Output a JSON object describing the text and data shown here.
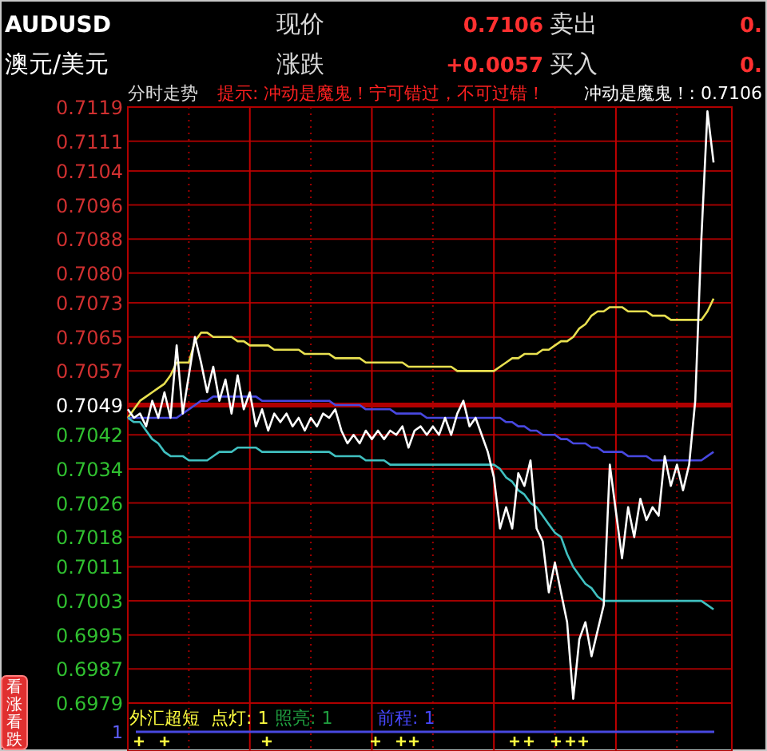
{
  "chart_data": [
    {
      "type": "line",
      "title": "AUDUSD",
      "subtitle": "澳元/美元",
      "tick_labels": "y",
      "grid": true,
      "marker": "none",
      "line_style": "solid",
      "annotations": [
        "现价",
        "0.7106",
        "卖出",
        "0.",
        "涨跌",
        "+0.0057",
        "买入",
        "0.",
        "分时走势",
        "提示: 冲动是魔鬼！宁可错过，不可过错！",
        "冲动是魔鬼！: 0.7106",
        "看涨看跌"
      ],
      "categories": [
        null,
        null,
        null,
        null,
        null,
        null,
        null,
        null,
        null,
        null,
        null,
        null,
        null,
        null,
        null,
        null,
        null,
        null,
        null,
        null,
        null,
        null,
        null,
        null,
        null,
        null,
        null,
        null,
        null,
        null,
        null,
        null,
        null,
        null,
        null,
        null,
        null,
        null,
        null,
        null,
        null,
        null,
        null,
        null,
        null,
        null,
        null,
        null,
        null,
        null,
        null,
        null,
        null,
        null,
        null,
        null,
        null,
        null,
        null,
        null,
        null,
        null,
        null,
        null,
        null,
        null,
        null,
        null,
        null,
        null,
        null,
        null,
        null,
        null,
        null,
        null,
        null,
        null,
        null,
        null,
        null,
        null,
        null,
        null,
        null,
        null,
        null,
        null,
        null,
        null,
        null,
        null,
        null,
        null,
        null,
        null,
        null
      ],
      "ylim": [
        0.6979,
        0.7119
      ],
      "yticks": [
        0.6979,
        0.6987,
        0.6995,
        0.7003,
        0.7011,
        0.7018,
        0.7026,
        0.7034,
        0.7042,
        0.7049,
        0.7057,
        0.7065,
        0.7073,
        {
          "value": 0.708,
          "label": "0.7080"
        },
        0.7088,
        0.7096,
        0.7104,
        0.7111,
        0.7119
      ],
      "ref_lines": [
        {
          "axis": "y",
          "value": 0.7049,
          "color": "#b00000"
        }
      ],
      "series": [
        {
          "color": "#e8e050",
          "values": [
            0.7046,
            0.7048,
            0.705,
            0.7051,
            0.7052,
            0.7053,
            0.7054,
            0.7056,
            0.7059,
            0.7059,
            0.7059,
            0.7064,
            0.7066,
            0.7066,
            0.7065,
            0.7065,
            0.7065,
            0.7065,
            0.7064,
            0.7064,
            0.7063,
            0.7063,
            0.7063,
            0.7063,
            0.7062,
            0.7062,
            0.7062,
            0.7062,
            0.7062,
            0.7061,
            0.7061,
            0.7061,
            0.7061,
            0.7061,
            0.706,
            0.706,
            0.706,
            0.706,
            0.706,
            0.7059,
            0.7059,
            0.7059,
            0.7059,
            0.7059,
            0.7059,
            0.7059,
            0.7058,
            0.7058,
            0.7058,
            0.7058,
            0.7058,
            0.7058,
            0.7058,
            0.7058,
            0.7057,
            0.7057,
            0.7057,
            0.7057,
            0.7057,
            0.7057,
            0.7057,
            0.7058,
            0.7059,
            0.706,
            0.706,
            0.7061,
            0.7061,
            0.7061,
            0.7062,
            0.7062,
            0.7063,
            0.7064,
            0.7064,
            0.7065,
            0.7067,
            0.7068,
            0.707,
            0.7071,
            0.7071,
            0.7072,
            0.7072,
            0.7072,
            0.7071,
            0.7071,
            0.7071,
            0.7071,
            0.707,
            0.707,
            0.707,
            0.7069,
            0.7069,
            0.7069,
            0.7069,
            0.7069,
            0.7069,
            0.7071,
            0.7074
          ]
        },
        {
          "color": "#4848e0",
          "values": [
            0.7046,
            0.7046,
            0.7046,
            0.7046,
            0.7046,
            0.7046,
            0.7046,
            0.7046,
            0.7046,
            0.7047,
            0.7048,
            0.7049,
            0.705,
            0.705,
            0.7051,
            0.7051,
            0.7051,
            0.7051,
            0.7051,
            0.7051,
            0.7051,
            0.7051,
            0.705,
            0.705,
            0.705,
            0.705,
            0.705,
            0.705,
            0.705,
            0.705,
            0.705,
            0.705,
            0.705,
            0.705,
            0.7049,
            0.7049,
            0.7049,
            0.7049,
            0.7049,
            0.7048,
            0.7048,
            0.7048,
            0.7048,
            0.7048,
            0.7047,
            0.7047,
            0.7047,
            0.7047,
            0.7047,
            0.7046,
            0.7046,
            0.7046,
            0.7046,
            0.7046,
            0.7046,
            0.7046,
            0.7046,
            0.7046,
            0.7046,
            0.7046,
            0.7046,
            0.7046,
            0.7045,
            0.7045,
            0.7044,
            0.7044,
            0.7043,
            0.7043,
            0.7042,
            0.7042,
            0.7042,
            0.7041,
            0.7041,
            0.704,
            0.704,
            0.704,
            0.7039,
            0.7039,
            0.7038,
            0.7038,
            0.7038,
            0.7038,
            0.7037,
            0.7037,
            0.7037,
            0.7037,
            0.7036,
            0.7036,
            0.7036,
            0.7036,
            0.7036,
            0.7036,
            0.7036,
            0.7036,
            0.7036,
            0.7037,
            0.7038
          ]
        },
        {
          "color": "#40c0c0",
          "values": [
            0.7046,
            0.7045,
            0.7045,
            0.7043,
            0.7041,
            0.704,
            0.7038,
            0.7037,
            0.7037,
            0.7037,
            0.7036,
            0.7036,
            0.7036,
            0.7036,
            0.7037,
            0.7038,
            0.7038,
            0.7038,
            0.7039,
            0.7039,
            0.7039,
            0.7039,
            0.7038,
            0.7038,
            0.7038,
            0.7038,
            0.7038,
            0.7038,
            0.7038,
            0.7038,
            0.7038,
            0.7038,
            0.7038,
            0.7038,
            0.7037,
            0.7037,
            0.7037,
            0.7037,
            0.7037,
            0.7036,
            0.7036,
            0.7036,
            0.7036,
            0.7035,
            0.7035,
            0.7035,
            0.7035,
            0.7035,
            0.7035,
            0.7035,
            0.7035,
            0.7035,
            0.7035,
            0.7035,
            0.7035,
            0.7035,
            0.7035,
            0.7035,
            0.7035,
            0.7035,
            0.7035,
            0.7034,
            0.7032,
            0.7031,
            0.7029,
            0.7028,
            0.7026,
            0.7025,
            0.7023,
            0.7021,
            0.7019,
            0.7018,
            0.7014,
            0.7011,
            0.7009,
            0.7007,
            0.7006,
            0.7004,
            0.7003,
            0.7003,
            0.7003,
            0.7003,
            0.7003,
            0.7003,
            0.7003,
            0.7003,
            0.7003,
            0.7003,
            0.7003,
            0.7003,
            0.7003,
            0.7003,
            0.7003,
            0.7003,
            0.7003,
            0.7002,
            0.7001
          ]
        },
        {
          "color": "#ffffff",
          "values": [
            0.7048,
            0.7046,
            0.7047,
            0.7044,
            0.705,
            0.7046,
            0.7052,
            0.7046,
            0.7063,
            0.7047,
            0.7056,
            0.7065,
            0.7059,
            0.7052,
            0.7058,
            0.705,
            0.7055,
            0.7047,
            0.7056,
            0.7048,
            0.7052,
            0.7044,
            0.7048,
            0.7043,
            0.7047,
            0.7045,
            0.7047,
            0.7044,
            0.7046,
            0.7043,
            0.7046,
            0.7044,
            0.7047,
            0.7046,
            0.7048,
            0.7043,
            0.704,
            0.7042,
            0.704,
            0.7043,
            0.7041,
            0.7043,
            0.7041,
            0.7043,
            0.7042,
            0.7044,
            0.7039,
            0.7043,
            0.7044,
            0.7042,
            0.7044,
            0.7042,
            0.7046,
            0.7042,
            0.7047,
            0.705,
            0.7044,
            0.7046,
            0.7042,
            0.7038,
            0.7032,
            0.702,
            0.7025,
            0.702,
            0.7033,
            0.703,
            0.7036,
            0.702,
            0.7017,
            0.7005,
            0.7012,
            0.7005,
            0.6998,
            0.698,
            0.6994,
            0.6998,
            0.699,
            0.6996,
            0.7002,
            0.7035,
            0.7024,
            0.7013,
            0.7025,
            0.7018,
            0.7027,
            0.7022,
            0.7025,
            0.7023,
            0.7037,
            0.703,
            0.7035,
            0.7029,
            0.7035,
            0.705,
            0.7088,
            0.7118,
            0.7106
          ]
        }
      ]
    },
    {
      "type": "other",
      "title": "外汇超短",
      "annotations": [
        "点灯: 1",
        "照亮: 1",
        "前程: 1",
        "1"
      ]
    }
  ]
}
